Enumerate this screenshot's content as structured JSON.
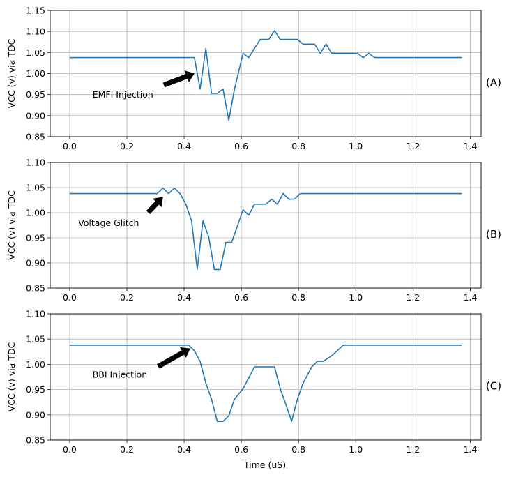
{
  "figure": {
    "xlabel": "Time (uS)"
  },
  "chart_data": [
    {
      "type": "line",
      "panel_label": "(A)",
      "ylabel": "VCC (v) via TDC",
      "xlim": [
        -0.068,
        1.438
      ],
      "ylim": [
        0.85,
        1.15
      ],
      "x_ticks": [
        "0.0",
        "0.2",
        "0.4",
        "0.6",
        "0.8",
        "1.0",
        "1.2",
        "1.4"
      ],
      "y_ticks": [
        "0.85",
        "0.90",
        "0.95",
        "1.00",
        "1.05",
        "1.10",
        "1.15"
      ],
      "grid": true,
      "color": "#1f77b4",
      "annotation": {
        "text": "EMFI Injection",
        "text_xy": [
          0.08,
          0.95
        ],
        "arrow_tail": [
          0.33,
          0.973
        ],
        "arrow_head": [
          0.435,
          1.0
        ]
      },
      "series": [
        {
          "x": [
            0,
            0.02,
            0.04,
            0.06,
            0.08,
            0.1,
            0.12,
            0.14,
            0.16,
            0.18,
            0.2,
            0.22,
            0.24,
            0.26,
            0.28,
            0.3,
            0.32,
            0.34,
            0.36,
            0.38,
            0.4,
            0.42,
            0.436,
            0.456,
            0.476,
            0.496,
            0.516,
            0.536,
            0.556,
            0.576,
            0.606,
            0.626,
            0.646,
            0.666,
            0.696,
            0.716,
            0.736,
            0.766,
            0.796,
            0.816,
            0.836,
            0.856,
            0.876,
            0.896,
            0.916,
            0.946,
            0.976,
            1.006,
            1.026,
            1.046,
            1.066,
            1.1,
            1.15,
            1.2,
            1.25,
            1.3,
            1.37
          ],
          "y": [
            1.038,
            1.038,
            1.038,
            1.038,
            1.038,
            1.038,
            1.038,
            1.038,
            1.038,
            1.038,
            1.038,
            1.038,
            1.038,
            1.038,
            1.038,
            1.038,
            1.038,
            1.038,
            1.038,
            1.038,
            1.038,
            1.038,
            1.038,
            0.963,
            1.06,
            0.953,
            0.953,
            0.963,
            0.889,
            0.963,
            1.048,
            1.038,
            1.06,
            1.081,
            1.081,
            1.102,
            1.081,
            1.081,
            1.081,
            1.07,
            1.07,
            1.07,
            1.048,
            1.07,
            1.048,
            1.048,
            1.048,
            1.048,
            1.038,
            1.048,
            1.038,
            1.038,
            1.038,
            1.038,
            1.038,
            1.038,
            1.038
          ]
        }
      ]
    },
    {
      "type": "line",
      "panel_label": "(B)",
      "ylabel": "VCC (v) via TDC",
      "xlim": [
        -0.068,
        1.438
      ],
      "ylim": [
        0.85,
        1.1
      ],
      "x_ticks": [
        "0.0",
        "0.2",
        "0.4",
        "0.6",
        "0.8",
        "1.0",
        "1.2",
        "1.4"
      ],
      "y_ticks": [
        "0.85",
        "0.90",
        "0.95",
        "1.00",
        "1.05",
        "1.10"
      ],
      "grid": true,
      "color": "#1f77b4",
      "annotation": {
        "text": "Voltage Glitch",
        "text_xy": [
          0.03,
          0.98
        ],
        "arrow_tail": [
          0.275,
          1.001
        ],
        "arrow_head": [
          0.325,
          1.031
        ]
      },
      "series": [
        {
          "x": [
            0,
            0.05,
            0.1,
            0.15,
            0.2,
            0.25,
            0.306,
            0.326,
            0.346,
            0.366,
            0.386,
            0.406,
            0.426,
            0.446,
            0.466,
            0.486,
            0.506,
            0.526,
            0.546,
            0.566,
            0.586,
            0.606,
            0.626,
            0.646,
            0.666,
            0.686,
            0.706,
            0.726,
            0.746,
            0.766,
            0.786,
            0.806,
            0.826,
            0.846,
            0.9,
            1.0,
            1.1,
            1.2,
            1.3,
            1.37
          ],
          "y": [
            1.038,
            1.038,
            1.038,
            1.038,
            1.038,
            1.038,
            1.038,
            1.049,
            1.038,
            1.049,
            1.038,
            1.017,
            0.984,
            0.887,
            0.984,
            0.952,
            0.887,
            0.887,
            0.941,
            0.941,
            0.973,
            1.006,
            0.995,
            1.017,
            1.017,
            1.017,
            1.027,
            1.017,
            1.038,
            1.027,
            1.027,
            1.038,
            1.038,
            1.038,
            1.038,
            1.038,
            1.038,
            1.038,
            1.038,
            1.038
          ]
        }
      ]
    },
    {
      "type": "line",
      "panel_label": "(C)",
      "ylabel": "VCC (v) via TDC",
      "xlim": [
        -0.068,
        1.438
      ],
      "ylim": [
        0.85,
        1.1
      ],
      "x_ticks": [
        "0.0",
        "0.2",
        "0.4",
        "0.6",
        "0.8",
        "1.0",
        "1.2",
        "1.4"
      ],
      "y_ticks": [
        "0.85",
        "0.90",
        "0.95",
        "1.00",
        "1.05",
        "1.10"
      ],
      "grid": true,
      "color": "#1f77b4",
      "annotation": {
        "text": "BBI Injection",
        "text_xy": [
          0.08,
          0.98
        ],
        "arrow_tail": [
          0.31,
          0.996
        ],
        "arrow_head": [
          0.42,
          1.031
        ]
      },
      "series": [
        {
          "x": [
            0,
            0.05,
            0.1,
            0.15,
            0.2,
            0.25,
            0.3,
            0.35,
            0.4,
            0.416,
            0.436,
            0.456,
            0.476,
            0.496,
            0.516,
            0.536,
            0.556,
            0.576,
            0.606,
            0.626,
            0.646,
            0.676,
            0.716,
            0.736,
            0.756,
            0.776,
            0.796,
            0.816,
            0.846,
            0.866,
            0.886,
            0.916,
            0.956,
            1.0,
            1.1,
            1.2,
            1.3,
            1.37
          ],
          "y": [
            1.038,
            1.038,
            1.038,
            1.038,
            1.038,
            1.038,
            1.038,
            1.038,
            1.038,
            1.038,
            1.027,
            1.006,
            0.963,
            0.931,
            0.887,
            0.887,
            0.898,
            0.931,
            0.952,
            0.973,
            0.995,
            0.995,
            0.995,
            0.952,
            0.92,
            0.887,
            0.931,
            0.963,
            0.995,
            1.006,
            1.006,
            1.017,
            1.038,
            1.038,
            1.038,
            1.038,
            1.038,
            1.038
          ]
        }
      ]
    }
  ]
}
